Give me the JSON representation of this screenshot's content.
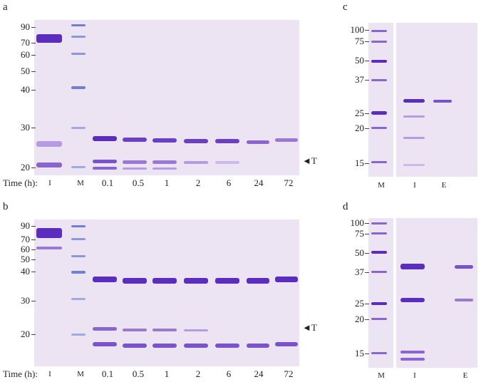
{
  "panels": {
    "a": {
      "letter": "a",
      "time_label": "Time (h):",
      "lanes": [
        "I",
        "M",
        "0.1",
        "0.5",
        "1",
        "2",
        "6",
        "24",
        "72"
      ],
      "markers": [
        "90",
        "70",
        "60",
        "50",
        "40",
        "30",
        "20"
      ],
      "arrow_label": "T"
    },
    "b": {
      "letter": "b",
      "time_label": "Time (h):",
      "lanes": [
        "I",
        "M",
        "0.1",
        "0.5",
        "1",
        "2",
        "6",
        "24",
        "72"
      ],
      "markers": [
        "90",
        "70",
        "60",
        "50",
        "40",
        "30",
        "20"
      ],
      "arrow_label": "T"
    },
    "c": {
      "letter": "c",
      "lanes": [
        "M",
        "I",
        "E"
      ],
      "markers": [
        "100",
        "75",
        "50",
        "37",
        "25",
        "20",
        "15"
      ]
    },
    "d": {
      "letter": "d",
      "lanes": [
        "M",
        "I",
        "E"
      ],
      "markers": [
        "100",
        "75",
        "50",
        "37",
        "25",
        "20",
        "15"
      ]
    }
  },
  "colors": {
    "gel_background": "#ece4f3",
    "band_strong": "#5a2dbf",
    "band_medium": "#9b78d6",
    "band_faint": "#cdb9e8",
    "marker_blue": "#6f7fd8"
  }
}
